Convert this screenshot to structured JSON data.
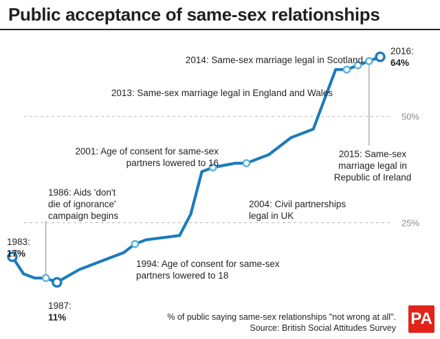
{
  "title": "Public acceptance of same-sex relationships",
  "chart_data": {
    "type": "line",
    "title": "Public acceptance of same-sex relationships",
    "xlabel": "",
    "ylabel": "",
    "ylim": [
      0,
      70
    ],
    "yticks": [
      {
        "value": 25,
        "label": "25%"
      },
      {
        "value": 50,
        "label": "50%"
      }
    ],
    "grid": true,
    "series": [
      {
        "color": "#1b7bbb",
        "points": [
          {
            "x": 1983,
            "y": 17
          },
          {
            "x": 1984,
            "y": 13
          },
          {
            "x": 1985,
            "y": 12
          },
          {
            "x": 1986,
            "y": 12
          },
          {
            "x": 1987,
            "y": 11
          },
          {
            "x": 1989,
            "y": 14
          },
          {
            "x": 1990,
            "y": 15
          },
          {
            "x": 1993,
            "y": 18
          },
          {
            "x": 1994,
            "y": 20
          },
          {
            "x": 1995,
            "y": 21
          },
          {
            "x": 1998,
            "y": 22
          },
          {
            "x": 1999,
            "y": 27
          },
          {
            "x": 2000,
            "y": 37
          },
          {
            "x": 2001,
            "y": 38
          },
          {
            "x": 2003,
            "y": 39
          },
          {
            "x": 2004,
            "y": 39
          },
          {
            "x": 2006,
            "y": 41
          },
          {
            "x": 2008,
            "y": 45
          },
          {
            "x": 2010,
            "y": 47
          },
          {
            "x": 2012,
            "y": 61
          },
          {
            "x": 2013,
            "y": 61
          },
          {
            "x": 2014,
            "y": 62
          },
          {
            "x": 2015,
            "y": 63
          },
          {
            "x": 2016,
            "y": 64
          }
        ]
      }
    ],
    "annotations": [
      {
        "id": "a1983",
        "x": 1983,
        "year_label": "1983:",
        "value_label": "17%"
      },
      {
        "id": "a1986",
        "x": 1986,
        "lines": [
          "1986: Aids 'don't",
          "die of ignorance'",
          "campaign begins"
        ]
      },
      {
        "id": "a1987",
        "x": 1987,
        "year_label": "1987:",
        "value_label": "11%"
      },
      {
        "id": "a1994",
        "x": 1994,
        "lines": [
          "1994: Age of consent for same-sex",
          "partners lowered to 18"
        ]
      },
      {
        "id": "a2001",
        "x": 2001,
        "lines": [
          "2001: Age of consent for same-sex",
          "partners lowered to 16"
        ]
      },
      {
        "id": "a2004",
        "x": 2004,
        "lines": [
          "2004: Civil partnerships",
          "legal in UK"
        ]
      },
      {
        "id": "a2013",
        "x": 2013,
        "lines": [
          "2013: Same-sex marriage legal in England and Wales"
        ]
      },
      {
        "id": "a2014",
        "x": 2014,
        "lines": [
          "2014: Same-sex marriage legal in Scotland"
        ]
      },
      {
        "id": "a2015",
        "x": 2015,
        "lines": [
          "2015: Same-sex",
          "marriage legal in",
          "Republic of Ireland"
        ]
      },
      {
        "id": "a2016",
        "x": 2016,
        "year_label": "2016:",
        "value_label": "64%"
      }
    ]
  },
  "footer": {
    "note": "% of public saying same-sex relationships \"not wrong at all\".",
    "source": "Source: British Social Attitudes Survey"
  },
  "logo": {
    "text": "PA"
  },
  "colors": {
    "line": "#1b7bbb",
    "marker_fill": "#ffffff",
    "marker_light": "#5bb2df",
    "grid": "#b8b8b8",
    "leader": "#9a9a9a",
    "logo_bg": "#e2231a"
  }
}
